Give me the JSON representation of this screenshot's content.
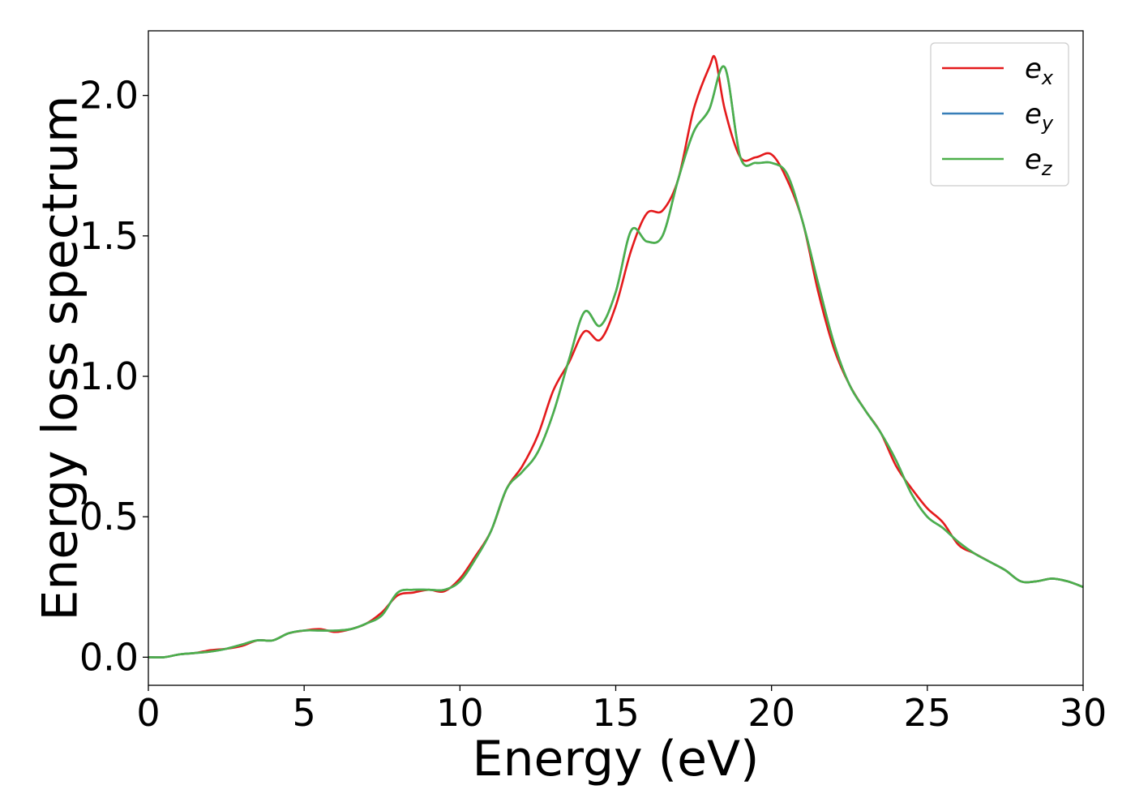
{
  "chart_data": {
    "type": "line",
    "xlabel": "Energy (eV)",
    "ylabel": "Energy loss spectrum",
    "xlim": [
      0,
      30
    ],
    "ylim": [
      -0.1,
      2.23
    ],
    "xticks": [
      0,
      5,
      10,
      15,
      20,
      25,
      30
    ],
    "xtick_labels": [
      "0",
      "5",
      "10",
      "15",
      "20",
      "25",
      "30"
    ],
    "yticks": [
      0.0,
      0.5,
      1.0,
      1.5,
      2.0
    ],
    "ytick_labels": [
      "0.0",
      "0.5",
      "1.0",
      "1.5",
      "2.0"
    ],
    "grid": false,
    "legend_position": "top-right",
    "series": [
      {
        "name": "e_x",
        "legend_main": "e",
        "legend_sub": "x",
        "color": "#e41a1c",
        "x": [
          0,
          0.5,
          1.0,
          1.5,
          2.0,
          2.5,
          3.0,
          3.5,
          4.0,
          4.5,
          5.0,
          5.5,
          6.0,
          6.5,
          7.0,
          7.5,
          8.0,
          8.5,
          9.0,
          9.5,
          10.0,
          10.5,
          11.0,
          11.5,
          12.0,
          12.5,
          13.0,
          13.5,
          14.0,
          14.5,
          15.0,
          15.5,
          16.0,
          16.5,
          17.0,
          17.5,
          18.0,
          18.2,
          18.5,
          19.0,
          19.5,
          20.0,
          20.5,
          21.0,
          21.5,
          22.0,
          22.5,
          23.0,
          23.5,
          24.0,
          24.5,
          25.0,
          25.5,
          26.0,
          26.5,
          27.0,
          27.5,
          28.0,
          28.5,
          29.0,
          29.5,
          30.0
        ],
        "y": [
          0,
          0,
          0.01,
          0.015,
          0.025,
          0.03,
          0.04,
          0.06,
          0.06,
          0.085,
          0.095,
          0.1,
          0.09,
          0.1,
          0.12,
          0.16,
          0.22,
          0.23,
          0.24,
          0.235,
          0.28,
          0.36,
          0.45,
          0.6,
          0.68,
          0.79,
          0.95,
          1.05,
          1.16,
          1.13,
          1.25,
          1.45,
          1.58,
          1.59,
          1.7,
          1.95,
          2.1,
          2.13,
          1.95,
          1.78,
          1.78,
          1.79,
          1.7,
          1.55,
          1.3,
          1.1,
          0.97,
          0.88,
          0.8,
          0.68,
          0.6,
          0.53,
          0.48,
          0.4,
          0.37,
          0.34,
          0.31,
          0.27,
          0.27,
          0.28,
          0.27,
          0.25
        ]
      },
      {
        "name": "e_y",
        "legend_main": "e",
        "legend_sub": "y",
        "color": "#377eb8",
        "x": [
          0,
          0.5,
          1.0,
          1.5,
          2.0,
          2.5,
          3.0,
          3.5,
          4.0,
          4.5,
          5.0,
          5.5,
          6.0,
          6.5,
          7.0,
          7.5,
          8.0,
          8.5,
          9.0,
          9.5,
          10.0,
          10.5,
          11.0,
          11.5,
          12.0,
          12.5,
          13.0,
          13.5,
          14.0,
          14.5,
          15.0,
          15.5,
          16.0,
          16.5,
          17.0,
          17.5,
          18.0,
          18.5,
          19.0,
          19.5,
          20.0,
          20.5,
          21.0,
          21.5,
          22.0,
          22.5,
          23.0,
          23.5,
          24.0,
          24.5,
          25.0,
          25.5,
          26.0,
          26.5,
          27.0,
          27.5,
          28.0,
          28.5,
          29.0,
          29.5,
          30.0
        ],
        "y": [
          0,
          0,
          0.01,
          0.015,
          0.02,
          0.03,
          0.045,
          0.06,
          0.06,
          0.085,
          0.095,
          0.095,
          0.095,
          0.1,
          0.12,
          0.15,
          0.23,
          0.24,
          0.24,
          0.24,
          0.27,
          0.35,
          0.45,
          0.6,
          0.66,
          0.73,
          0.87,
          1.06,
          1.23,
          1.18,
          1.3,
          1.52,
          1.48,
          1.5,
          1.7,
          1.87,
          1.95,
          2.1,
          1.78,
          1.76,
          1.76,
          1.72,
          1.55,
          1.33,
          1.12,
          0.97,
          0.88,
          0.8,
          0.7,
          0.58,
          0.5,
          0.46,
          0.41,
          0.37,
          0.34,
          0.31,
          0.27,
          0.27,
          0.28,
          0.27,
          0.25
        ]
      },
      {
        "name": "e_z",
        "legend_main": "e",
        "legend_sub": "z",
        "color": "#4daf4a",
        "x": [
          0,
          0.5,
          1.0,
          1.5,
          2.0,
          2.5,
          3.0,
          3.5,
          4.0,
          4.5,
          5.0,
          5.5,
          6.0,
          6.5,
          7.0,
          7.5,
          8.0,
          8.5,
          9.0,
          9.5,
          10.0,
          10.5,
          11.0,
          11.5,
          12.0,
          12.5,
          13.0,
          13.5,
          14.0,
          14.5,
          15.0,
          15.5,
          16.0,
          16.5,
          17.0,
          17.5,
          18.0,
          18.5,
          19.0,
          19.5,
          20.0,
          20.5,
          21.0,
          21.5,
          22.0,
          22.5,
          23.0,
          23.5,
          24.0,
          24.5,
          25.0,
          25.5,
          26.0,
          26.5,
          27.0,
          27.5,
          28.0,
          28.5,
          29.0,
          29.5,
          30.0
        ],
        "y": [
          0,
          0,
          0.01,
          0.015,
          0.02,
          0.03,
          0.045,
          0.06,
          0.06,
          0.085,
          0.095,
          0.095,
          0.095,
          0.1,
          0.12,
          0.15,
          0.23,
          0.24,
          0.24,
          0.24,
          0.27,
          0.35,
          0.45,
          0.6,
          0.66,
          0.73,
          0.87,
          1.06,
          1.23,
          1.18,
          1.3,
          1.52,
          1.48,
          1.5,
          1.7,
          1.87,
          1.95,
          2.1,
          1.78,
          1.76,
          1.76,
          1.72,
          1.55,
          1.33,
          1.12,
          0.97,
          0.88,
          0.8,
          0.7,
          0.58,
          0.5,
          0.46,
          0.41,
          0.37,
          0.34,
          0.31,
          0.27,
          0.27,
          0.28,
          0.27,
          0.25
        ]
      }
    ]
  }
}
